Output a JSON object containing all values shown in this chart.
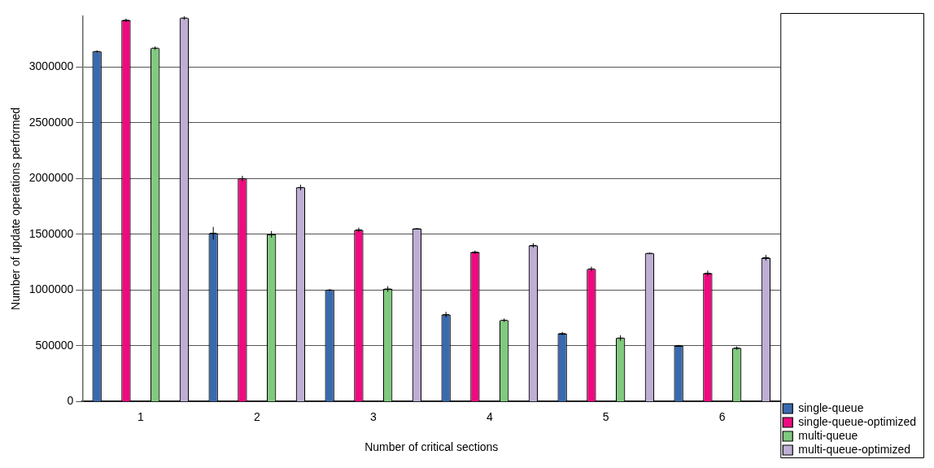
{
  "chart_data": {
    "type": "bar",
    "xlabel": "Number of critical sections",
    "ylabel": "Number of update operations performed",
    "categories": [
      "1",
      "2",
      "3",
      "4",
      "5",
      "6"
    ],
    "series": [
      {
        "name": "single-queue",
        "color": "#3a6aae",
        "values": [
          3140000,
          1510000,
          1000000,
          780000,
          610000,
          500000
        ],
        "errors": [
          10000,
          57000,
          10000,
          25000,
          15000,
          8000
        ]
      },
      {
        "name": "single-queue-optimized",
        "color": "#ee0a7f",
        "values": [
          3420000,
          2000000,
          1540000,
          1340000,
          1190000,
          1150000
        ],
        "errors": [
          15000,
          25000,
          20000,
          15000,
          20000,
          25000
        ]
      },
      {
        "name": "multi-queue",
        "color": "#80c97e",
        "values": [
          3170000,
          1500000,
          1010000,
          730000,
          570000,
          480000
        ],
        "errors": [
          15000,
          30000,
          25000,
          15000,
          25000,
          15000
        ]
      },
      {
        "name": "multi-queue-optimized",
        "color": "#beaed4",
        "values": [
          3440000,
          1920000,
          1550000,
          1400000,
          1330000,
          1290000
        ],
        "errors": [
          15000,
          25000,
          5000,
          20000,
          5000,
          25000
        ]
      }
    ],
    "ylim": [
      0,
      3460000
    ],
    "yticks": [
      0,
      500000,
      1000000,
      1500000,
      2000000,
      2500000,
      3000000
    ],
    "grid": "y",
    "legend": "bottom right"
  }
}
